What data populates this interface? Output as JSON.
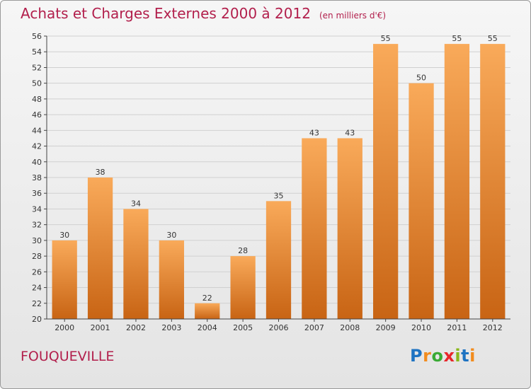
{
  "header": {
    "title": "Achats et Charges Externes 2000 à 2012",
    "unit": "(en milliers d'€)"
  },
  "footer": {
    "commune": "FOUQUEVILLE",
    "logo_text": "Proxiti"
  },
  "colors": {
    "title": "#b21f4c",
    "bar_light": "#f9aa5a",
    "bar_dark": "#c86414",
    "axis": "#444444",
    "grid": "#d0d0d0"
  },
  "chart_data": {
    "type": "bar",
    "title": "Achats et Charges Externes 2000 à 2012",
    "subtitle": "(en milliers d'€)",
    "categories": [
      "2000",
      "2001",
      "2002",
      "2003",
      "2004",
      "2005",
      "2006",
      "2007",
      "2008",
      "2009",
      "2010",
      "2011",
      "2012"
    ],
    "values": [
      30,
      38,
      34,
      30,
      22,
      28,
      35,
      43,
      43,
      55,
      50,
      55,
      55
    ],
    "ylim": [
      20,
      56
    ],
    "yticks": [
      20,
      22,
      24,
      26,
      28,
      30,
      32,
      34,
      36,
      38,
      40,
      42,
      44,
      46,
      48,
      50,
      52,
      54,
      56
    ],
    "xlabel": "",
    "ylabel": "",
    "grid": true
  }
}
